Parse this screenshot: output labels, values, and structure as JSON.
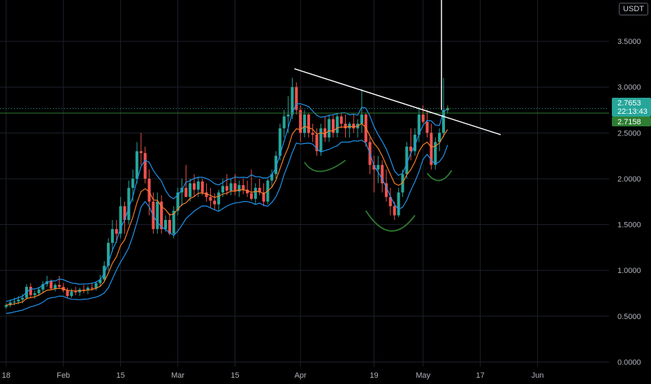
{
  "currency_label": "USDT",
  "colors": {
    "background": "#000000",
    "up": "#26a69a",
    "up_bright": "#4caf50",
    "down": "#ef5350",
    "ema_fast": "#ff7f27",
    "ema_slow": "#2196f3",
    "resistance": "#2e7d32",
    "trendline": "#ffffff",
    "annotation": "#2e7d32",
    "grid": "#1e222d",
    "axis_text": "#b2b5be"
  },
  "price_badges": {
    "last_price": "2.7653",
    "countdown": "22:13:43",
    "level": "2.7158"
  },
  "chart_data": {
    "type": "candlestick",
    "y_tick_labels": [
      "0.0000",
      "0.5000",
      "1.0000",
      "1.5000",
      "2.0000",
      "2.5000",
      "3.0000",
      "3.5000"
    ],
    "y_ticks": [
      0,
      0.5,
      1.0,
      1.5,
      2.0,
      2.5,
      3.0,
      3.5
    ],
    "ylim": [
      -0.05,
      3.95
    ],
    "x_tick_labels": [
      "18",
      "Feb",
      "15",
      "Mar",
      "15",
      "Apr",
      "19",
      "May",
      "17",
      "Jun"
    ],
    "x_tick_days": [
      0,
      14,
      28,
      42,
      56,
      72,
      90,
      102,
      116,
      130
    ],
    "xlim": [
      -1.5,
      147.5
    ],
    "resistance_level": 2.7158,
    "last_price": 2.7653,
    "trendline": [
      [
        70.5,
        3.2
      ],
      [
        121,
        2.48
      ]
    ],
    "projection_line": [
      [
        106.5,
        2.75
      ],
      [
        106.5,
        4.0
      ]
    ],
    "annotations": [
      {
        "kind": "arc",
        "points": [
          [
            73,
            2.18
          ],
          [
            77,
            2.08
          ],
          [
            83,
            2.2
          ]
        ]
      },
      {
        "kind": "arc",
        "points": [
          [
            88,
            1.65
          ],
          [
            94,
            1.43
          ],
          [
            100,
            1.6
          ]
        ]
      },
      {
        "kind": "arc",
        "points": [
          [
            103,
            2.06
          ],
          [
            106,
            1.98
          ],
          [
            109,
            2.09
          ]
        ]
      }
    ],
    "candles": [
      [
        0.6,
        0.64,
        0.58,
        0.62
      ],
      [
        0.62,
        0.68,
        0.6,
        0.65
      ],
      [
        0.65,
        0.7,
        0.62,
        0.66
      ],
      [
        0.66,
        0.72,
        0.63,
        0.68
      ],
      [
        0.68,
        0.74,
        0.64,
        0.7
      ],
      [
        0.7,
        0.85,
        0.68,
        0.82
      ],
      [
        0.82,
        0.86,
        0.7,
        0.73
      ],
      [
        0.73,
        0.78,
        0.69,
        0.75
      ],
      [
        0.75,
        0.82,
        0.72,
        0.79
      ],
      [
        0.79,
        0.88,
        0.76,
        0.85
      ],
      [
        0.85,
        0.94,
        0.82,
        0.88
      ],
      [
        0.88,
        0.9,
        0.79,
        0.8
      ],
      [
        0.8,
        0.86,
        0.77,
        0.84
      ],
      [
        0.84,
        0.94,
        0.8,
        0.82
      ],
      [
        0.82,
        0.86,
        0.76,
        0.78
      ],
      [
        0.78,
        0.81,
        0.7,
        0.72
      ],
      [
        0.72,
        0.8,
        0.7,
        0.77
      ],
      [
        0.77,
        0.82,
        0.73,
        0.76
      ],
      [
        0.76,
        0.81,
        0.72,
        0.79
      ],
      [
        0.79,
        0.84,
        0.75,
        0.78
      ],
      [
        0.78,
        0.83,
        0.74,
        0.81
      ],
      [
        0.81,
        0.86,
        0.78,
        0.8
      ],
      [
        0.8,
        0.88,
        0.78,
        0.86
      ],
      [
        0.86,
        0.95,
        0.82,
        0.9
      ],
      [
        0.9,
        1.1,
        0.87,
        1.05
      ],
      [
        1.05,
        1.35,
        1.0,
        1.3
      ],
      [
        1.3,
        1.55,
        1.2,
        1.45
      ],
      [
        1.45,
        1.55,
        1.3,
        1.4
      ],
      [
        1.4,
        1.8,
        1.35,
        1.7
      ],
      [
        1.7,
        1.75,
        1.4,
        1.55
      ],
      [
        1.55,
        1.98,
        1.5,
        1.9
      ],
      [
        1.9,
        2.1,
        1.75,
        2.0
      ],
      [
        2.0,
        2.4,
        1.95,
        2.3
      ],
      [
        2.3,
        2.5,
        2.15,
        2.28
      ],
      [
        2.28,
        2.35,
        1.95,
        2.0
      ],
      [
        2.0,
        2.1,
        1.6,
        1.75
      ],
      [
        1.75,
        1.85,
        1.4,
        1.45
      ],
      [
        1.45,
        1.85,
        1.4,
        1.75
      ],
      [
        1.75,
        1.82,
        1.4,
        1.45
      ],
      [
        1.45,
        1.6,
        1.42,
        1.55
      ],
      [
        1.55,
        1.62,
        1.38,
        1.4
      ],
      [
        1.4,
        1.7,
        1.35,
        1.65
      ],
      [
        1.65,
        1.9,
        1.6,
        1.85
      ],
      [
        1.85,
        2.0,
        1.7,
        1.9
      ],
      [
        1.9,
        2.15,
        1.8,
        1.8
      ],
      [
        1.8,
        2.0,
        1.75,
        1.95
      ],
      [
        1.95,
        2.05,
        1.8,
        1.88
      ],
      [
        1.88,
        2.02,
        1.8,
        1.97
      ],
      [
        1.97,
        2.0,
        1.82,
        1.85
      ],
      [
        1.85,
        1.95,
        1.75,
        1.8
      ],
      [
        1.8,
        1.9,
        1.68,
        1.76
      ],
      [
        1.76,
        1.84,
        1.66,
        1.72
      ],
      [
        1.72,
        1.88,
        1.65,
        1.85
      ],
      [
        1.85,
        2.0,
        1.8,
        1.92
      ],
      [
        1.92,
        2.05,
        1.82,
        1.87
      ],
      [
        1.87,
        2.0,
        1.82,
        1.95
      ],
      [
        1.95,
        2.05,
        1.82,
        1.86
      ],
      [
        1.86,
        1.98,
        1.8,
        1.93
      ],
      [
        1.93,
        2.0,
        1.83,
        1.88
      ],
      [
        1.88,
        1.98,
        1.8,
        1.84
      ],
      [
        1.84,
        2.1,
        1.76,
        1.78
      ],
      [
        1.78,
        1.95,
        1.72,
        1.9
      ],
      [
        1.9,
        2.0,
        1.82,
        1.85
      ],
      [
        1.85,
        1.95,
        1.7,
        1.75
      ],
      [
        1.75,
        2.0,
        1.72,
        1.98
      ],
      [
        1.98,
        2.1,
        1.9,
        2.05
      ],
      [
        2.05,
        2.3,
        2.0,
        2.25
      ],
      [
        2.25,
        2.6,
        2.2,
        2.55
      ],
      [
        2.55,
        2.75,
        2.45,
        2.68
      ],
      [
        2.68,
        2.9,
        2.5,
        2.7
      ],
      [
        2.7,
        3.1,
        2.65,
        3.0
      ],
      [
        3.0,
        3.05,
        2.7,
        2.75
      ],
      [
        2.75,
        2.8,
        2.4,
        2.5
      ],
      [
        2.5,
        2.75,
        2.45,
        2.7
      ],
      [
        2.7,
        2.72,
        2.45,
        2.5
      ],
      [
        2.5,
        2.6,
        2.4,
        2.48
      ],
      [
        2.48,
        2.55,
        2.25,
        2.3
      ],
      [
        2.3,
        2.6,
        2.25,
        2.55
      ],
      [
        2.55,
        2.68,
        2.4,
        2.45
      ],
      [
        2.45,
        2.7,
        2.4,
        2.65
      ],
      [
        2.65,
        2.7,
        2.45,
        2.5
      ],
      [
        2.5,
        2.72,
        2.45,
        2.68
      ],
      [
        2.68,
        2.72,
        2.55,
        2.6
      ],
      [
        2.6,
        2.7,
        2.45,
        2.55
      ],
      [
        2.55,
        2.62,
        2.45,
        2.6
      ],
      [
        2.6,
        2.7,
        2.5,
        2.55
      ],
      [
        2.55,
        2.65,
        2.45,
        2.6
      ],
      [
        2.6,
        2.98,
        2.5,
        2.7
      ],
      [
        2.7,
        2.72,
        2.35,
        2.4
      ],
      [
        2.4,
        2.45,
        2.05,
        2.15
      ],
      [
        2.15,
        2.25,
        1.85,
        2.1
      ],
      [
        2.1,
        2.25,
        1.95,
        2.15
      ],
      [
        2.15,
        2.2,
        1.85,
        1.95
      ],
      [
        1.95,
        2.1,
        1.75,
        1.8
      ],
      [
        1.8,
        1.9,
        1.6,
        1.7
      ],
      [
        1.7,
        1.75,
        1.55,
        1.6
      ],
      [
        1.6,
        1.9,
        1.58,
        1.85
      ],
      [
        1.85,
        2.1,
        1.8,
        2.05
      ],
      [
        2.05,
        2.4,
        2.0,
        2.35
      ],
      [
        2.35,
        2.55,
        2.2,
        2.3
      ],
      [
        2.3,
        2.55,
        2.25,
        2.48
      ],
      [
        2.48,
        2.78,
        2.4,
        2.7
      ],
      [
        2.7,
        2.8,
        2.6,
        2.62
      ],
      [
        2.62,
        2.75,
        2.45,
        2.5
      ],
      [
        2.5,
        2.6,
        2.1,
        2.15
      ],
      [
        2.15,
        2.45,
        2.1,
        2.4
      ],
      [
        2.4,
        2.55,
        2.3,
        2.5
      ],
      [
        2.5,
        3.1,
        2.45,
        2.75
      ],
      [
        2.75,
        2.8,
        2.72,
        2.77
      ]
    ]
  }
}
